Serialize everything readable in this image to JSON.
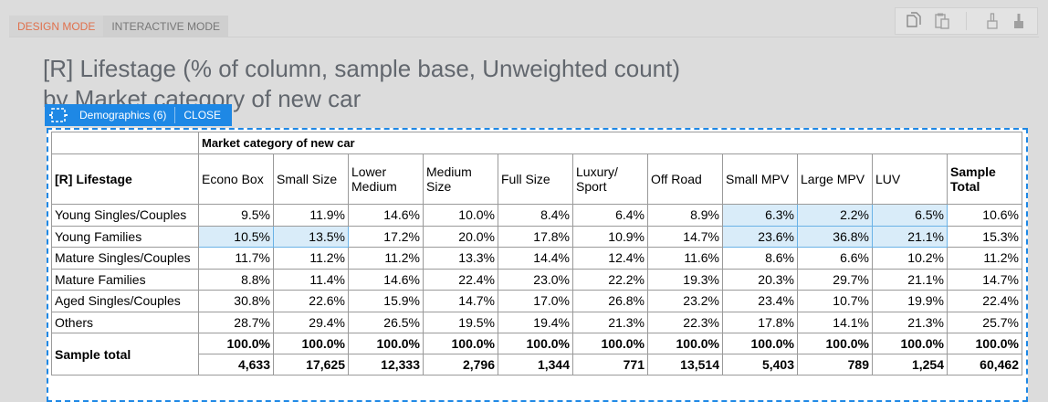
{
  "tabs": [
    "DESIGN MODE",
    "INTERACTIVE MODE"
  ],
  "title_lines": [
    "[R] Lifestage (% of column, sample base, Unweighted count)",
    "by Market category of new car"
  ],
  "badge": {
    "label": "Demographics (6)",
    "close": "CLOSE"
  },
  "table": {
    "column_group": "Market category of new car",
    "row_header": "[R] Lifestage",
    "columns": [
      "Econo Box",
      "Small Size",
      "Lower Medium",
      "Medium Size",
      "Full Size",
      "Luxury/ Sport",
      "Off Road",
      "Small MPV",
      "Large MPV",
      "LUV",
      "Sample Total"
    ],
    "rows": [
      {
        "label": "Young Singles/Couples",
        "values": [
          "9.5%",
          "11.9%",
          "14.6%",
          "10.0%",
          "8.4%",
          "6.4%",
          "8.9%",
          "6.3%",
          "2.2%",
          "6.5%",
          "10.6%"
        ]
      },
      {
        "label": "Young Families",
        "values": [
          "10.5%",
          "13.5%",
          "17.2%",
          "20.0%",
          "17.8%",
          "10.9%",
          "14.7%",
          "23.6%",
          "36.8%",
          "21.1%",
          "15.3%"
        ]
      },
      {
        "label": "Mature Singles/Couples",
        "values": [
          "11.7%",
          "11.2%",
          "11.2%",
          "13.3%",
          "14.4%",
          "12.4%",
          "11.6%",
          "8.6%",
          "6.6%",
          "10.2%",
          "11.2%"
        ]
      },
      {
        "label": "Mature Families",
        "values": [
          "8.8%",
          "11.4%",
          "14.6%",
          "22.4%",
          "23.0%",
          "22.2%",
          "19.3%",
          "20.3%",
          "29.7%",
          "21.1%",
          "14.7%"
        ]
      },
      {
        "label": "Aged Singles/Couples",
        "values": [
          "30.8%",
          "22.6%",
          "15.9%",
          "14.7%",
          "17.0%",
          "26.8%",
          "23.2%",
          "23.4%",
          "10.7%",
          "19.9%",
          "22.4%"
        ]
      },
      {
        "label": "Others",
        "values": [
          "28.7%",
          "29.4%",
          "26.5%",
          "19.5%",
          "19.4%",
          "21.3%",
          "22.3%",
          "17.8%",
          "14.1%",
          "21.3%",
          "25.7%"
        ]
      }
    ],
    "total": {
      "label": "Sample total",
      "percent": [
        "100.0%",
        "100.0%",
        "100.0%",
        "100.0%",
        "100.0%",
        "100.0%",
        "100.0%",
        "100.0%",
        "100.0%",
        "100.0%",
        "100.0%"
      ],
      "counts": [
        "4,633",
        "17,625",
        "12,333",
        "2,796",
        "1,344",
        "771",
        "13,514",
        "5,403",
        "789",
        "1,254",
        "60,462"
      ]
    },
    "highlighted_cells": [
      [
        0,
        7
      ],
      [
        0,
        8
      ],
      [
        0,
        9
      ],
      [
        1,
        0
      ],
      [
        1,
        1
      ],
      [
        1,
        7
      ],
      [
        1,
        8
      ],
      [
        1,
        9
      ]
    ]
  },
  "toolbar": {
    "icons": [
      "copy-icon",
      "paste-icon",
      "brush-outline-icon",
      "brush-filled-icon"
    ]
  },
  "colors": {
    "accent": "#1e88e5",
    "active_tab": "#e0714d",
    "highlight": "#d9ecf9"
  }
}
